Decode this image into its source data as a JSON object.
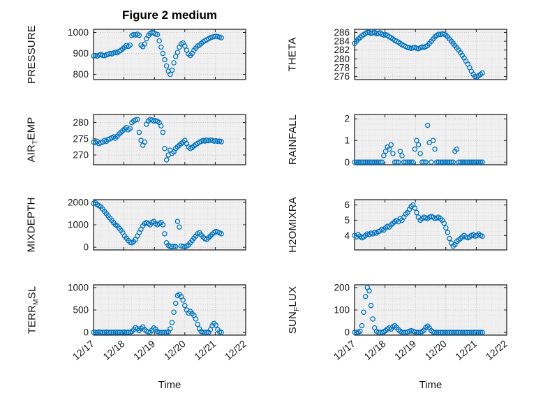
{
  "chart_data": {
    "type": "scatter",
    "title": "Figure 2 medium",
    "xlabel": "Time",
    "marker_color": "#0072BD",
    "xlim": [
      0,
      5
    ],
    "xticks": [
      0,
      1,
      2,
      3,
      4,
      5
    ],
    "xtick_labels": [
      "12/17",
      "12/18",
      "12/19",
      "12/20",
      "12/21",
      "12/22"
    ],
    "x_unit": "days since 12/17",
    "x": [
      0,
      0.06,
      0.12,
      0.18,
      0.24,
      0.3,
      0.36,
      0.42,
      0.48,
      0.54,
      0.6,
      0.66,
      0.72,
      0.78,
      0.84,
      0.9,
      0.96,
      1.02,
      1.08,
      1.14,
      1.2,
      1.26,
      1.32,
      1.38,
      1.44,
      1.5,
      1.56,
      1.62,
      1.68,
      1.74,
      1.8,
      1.86,
      1.92,
      1.98,
      2.04,
      2.1,
      2.16,
      2.22,
      2.28,
      2.34,
      2.4,
      2.46,
      2.52,
      2.58,
      2.64,
      2.7,
      2.76,
      2.82,
      2.88,
      2.94,
      3,
      3.06,
      3.12,
      3.18,
      3.24,
      3.3,
      3.36,
      3.42,
      3.48,
      3.54,
      3.6,
      3.66,
      3.72,
      3.78,
      3.84,
      3.9,
      3.96,
      4.02,
      4.08,
      4.14,
      4.2
    ],
    "charts": [
      {
        "name": "PRESSURE",
        "ylabel_pre": "PRESSURE",
        "ylabel_sub": "",
        "ylabel_post": "",
        "yticks": [
          800,
          900,
          1000
        ],
        "ylim": [
          775,
          1015
        ],
        "y": [
          888,
          890,
          887,
          892,
          895,
          891,
          889,
          893,
          896,
          900,
          898,
          902,
          905,
          903,
          910,
          915,
          922,
          930,
          938,
          933,
          940,
          985,
          990,
          988,
          992,
          986,
          940,
          932,
          945,
          970,
          985,
          995,
          1000,
          998,
          993,
          990,
          960,
          930,
          900,
          870,
          840,
          815,
          800,
          820,
          855,
          885,
          905,
          930,
          945,
          950,
          935,
          915,
          898,
          890,
          900,
          915,
          925,
          935,
          940,
          948,
          955,
          960,
          965,
          970,
          975,
          978,
          980,
          982,
          980,
          978,
          975
        ]
      },
      {
        "name": "THETA",
        "ylabel_pre": "THETA",
        "ylabel_sub": "",
        "ylabel_post": "",
        "yticks": [
          276,
          278,
          280,
          282,
          284,
          286
        ],
        "ylim": [
          275.3,
          286.7
        ],
        "y": [
          283.5,
          284,
          284.5,
          284.8,
          285.2,
          285.5,
          285.8,
          286,
          286,
          285.8,
          285.9,
          286,
          285.7,
          285.8,
          285.9,
          285.6,
          285.4,
          285.5,
          285.3,
          285,
          284.8,
          284.5,
          284.2,
          284,
          283.8,
          283.5,
          283.2,
          283,
          282.8,
          282.6,
          282.5,
          282.4,
          282.5,
          282.6,
          282.4,
          282.3,
          282.5,
          282.7,
          282.6,
          282.8,
          283,
          283.5,
          284,
          284.5,
          285,
          285.3,
          285.6,
          285.5,
          285.7,
          285.6,
          285.4,
          285,
          284.5,
          284,
          283.5,
          283,
          282.5,
          282,
          281.4,
          280.8,
          280.2,
          279.5,
          278.8,
          278,
          277.2,
          276.5,
          276,
          275.9,
          276.2,
          276.5,
          276.8
        ]
      },
      {
        "name": "AIR_TEMP",
        "ylabel_pre": "AIR",
        "ylabel_sub": "T",
        "ylabel_post": "EMP",
        "yticks": [
          270,
          275,
          280
        ],
        "ylim": [
          267,
          282.5
        ],
        "y": [
          274,
          273.8,
          274.2,
          273.5,
          273.8,
          274,
          274.5,
          274.2,
          274.8,
          275,
          275.3,
          275.6,
          275.2,
          275.8,
          276.5,
          277,
          277.5,
          278,
          278.5,
          277.8,
          278.2,
          280,
          280.5,
          280.8,
          281,
          277,
          274.5,
          273,
          274,
          279.5,
          280.5,
          281,
          280.8,
          280.5,
          280.6,
          280.4,
          280,
          279,
          277,
          272,
          268.5,
          270,
          271.5,
          270.5,
          271,
          272,
          272.5,
          273,
          273.5,
          274,
          274.5,
          273.5,
          272.5,
          272,
          272.3,
          272.8,
          273.2,
          273.6,
          274,
          274.2,
          274.5,
          274.3,
          274.6,
          274.4,
          274.6,
          274.5,
          274.3,
          274.4,
          274.2,
          274.3,
          274.1
        ]
      },
      {
        "name": "RAINFALL",
        "ylabel_pre": "RAINFALL",
        "ylabel_sub": "",
        "ylabel_post": "",
        "yticks": [
          0,
          1,
          2
        ],
        "ylim": [
          -0.12,
          2.2
        ],
        "y": [
          0,
          0,
          0,
          0,
          0,
          0,
          0,
          0,
          0,
          0,
          0,
          0,
          0,
          0,
          0,
          0,
          0.3,
          0.5,
          0.7,
          0.6,
          0.8,
          0.4,
          0,
          0,
          0,
          0.5,
          0.3,
          0,
          0,
          0,
          0,
          0,
          0,
          0.6,
          1,
          0.8,
          0.4,
          0,
          0,
          0,
          1.7,
          0.9,
          0,
          1,
          0.6,
          0,
          0,
          0,
          0,
          0,
          0,
          0,
          0,
          0,
          0,
          0.5,
          0.6,
          0,
          0,
          0,
          0,
          0,
          0,
          0,
          0,
          0,
          0,
          0,
          0,
          0,
          0
        ]
      },
      {
        "name": "MIXDEPTH",
        "ylabel_pre": "MIXDEPTH",
        "ylabel_sub": "",
        "ylabel_post": "",
        "yticks": [
          0,
          1000,
          2000
        ],
        "ylim": [
          -120,
          2120
        ],
        "y": [
          1950,
          1980,
          1900,
          1850,
          1800,
          1700,
          1600,
          1500,
          1400,
          1300,
          1200,
          1100,
          1000,
          950,
          850,
          750,
          650,
          500,
          400,
          300,
          220,
          200,
          250,
          350,
          500,
          650,
          800,
          950,
          1050,
          1100,
          1050,
          1000,
          1100,
          1150,
          1050,
          1000,
          1050,
          1100,
          1000,
          600,
          200,
          80,
          30,
          20,
          40,
          30,
          1150,
          900,
          60,
          40,
          30,
          50,
          100,
          200,
          300,
          400,
          500,
          600,
          650,
          550,
          450,
          380,
          350,
          420,
          500,
          580,
          650,
          700,
          680,
          640,
          600
        ]
      },
      {
        "name": "H2OMIXRA",
        "ylabel_pre": "H2OMIXRA",
        "ylabel_sub": "",
        "ylabel_post": "",
        "yticks": [
          4,
          5,
          6
        ],
        "ylim": [
          3.05,
          6.35
        ],
        "y": [
          4,
          3.9,
          4.05,
          3.95,
          3.85,
          3.9,
          4,
          4.1,
          4.05,
          4.15,
          4.1,
          4.2,
          4.15,
          4.25,
          4.3,
          4.4,
          4.35,
          4.5,
          4.6,
          4.55,
          4.7,
          4.8,
          4.9,
          5,
          4.9,
          5.1,
          5,
          5.2,
          5.4,
          5.5,
          5.7,
          5.9,
          6,
          5.8,
          5.5,
          5.2,
          5,
          5.1,
          5.2,
          5.15,
          5.1,
          5.2,
          5.25,
          5.2,
          5.1,
          5.15,
          5.2,
          5.1,
          5,
          4.8,
          4.5,
          4.2,
          3.8,
          3.5,
          3.3,
          3.4,
          3.6,
          3.7,
          3.8,
          3.9,
          4,
          3.9,
          3.85,
          3.9,
          4,
          4.05,
          3.95,
          4,
          4.1,
          4,
          3.95
        ]
      },
      {
        "name": "TERR_MSL",
        "ylabel_pre": "TERR",
        "ylabel_sub": "M",
        "ylabel_post": "SL",
        "yticks": [
          0,
          500,
          1000
        ],
        "ylim": [
          -60,
          1060
        ],
        "y": [
          0,
          5,
          0,
          8,
          0,
          3,
          0,
          6,
          2,
          0,
          4,
          0,
          7,
          0,
          5,
          0,
          3,
          8,
          0,
          5,
          0,
          20,
          60,
          110,
          80,
          40,
          90,
          120,
          60,
          30,
          10,
          0,
          50,
          100,
          70,
          20,
          0,
          0,
          0,
          0,
          0,
          10,
          80,
          220,
          450,
          650,
          820,
          850,
          800,
          720,
          600,
          500,
          430,
          470,
          420,
          380,
          300,
          180,
          80,
          20,
          0,
          0,
          0,
          0,
          60,
          150,
          200,
          160,
          60,
          10,
          0
        ]
      },
      {
        "name": "SUN_FLUX",
        "ylabel_pre": "SUN",
        "ylabel_sub": "F",
        "ylabel_post": "LUX",
        "yticks": [
          0,
          100,
          200
        ],
        "ylim": [
          -12,
          212
        ],
        "y": [
          0,
          0,
          0,
          5,
          30,
          90,
          160,
          200,
          185,
          120,
          60,
          20,
          5,
          0,
          0,
          0,
          3,
          8,
          15,
          20,
          15,
          25,
          30,
          22,
          12,
          5,
          0,
          0,
          0,
          2,
          5,
          8,
          5,
          2,
          0,
          0,
          0,
          3,
          10,
          22,
          28,
          20,
          8,
          2,
          0,
          0,
          0,
          0,
          0,
          0,
          0,
          0,
          0,
          0,
          0,
          0,
          0,
          0,
          0,
          0,
          0,
          0,
          0,
          0,
          0,
          0,
          0,
          0,
          0,
          0,
          0
        ]
      }
    ]
  }
}
